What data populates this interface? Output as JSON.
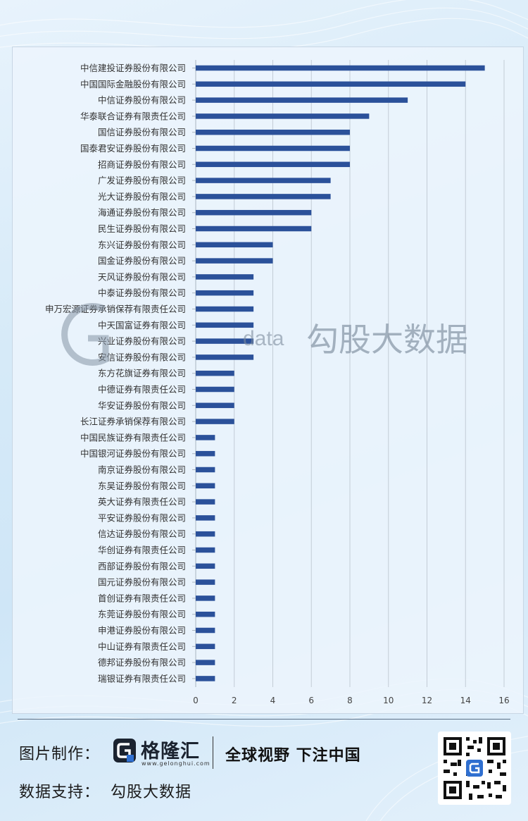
{
  "chart_data": {
    "type": "bar",
    "orientation": "horizontal",
    "categories": [
      "中信建投证券股份有限公司",
      "中国国际金融股份有限公司",
      "中信证券股份有限公司",
      "华泰联合证券有限责任公司",
      "国信证券股份有限公司",
      "国泰君安证券股份有限公司",
      "招商证券股份有限公司",
      "广发证券股份有限公司",
      "光大证券股份有限公司",
      "海通证券股份有限公司",
      "民生证券股份有限公司",
      "东兴证券股份有限公司",
      "国金证券股份有限公司",
      "天风证券股份有限公司",
      "中泰证券股份有限公司",
      "申万宏源证券承销保荐有限责任公司",
      "中天国富证券有限公司",
      "兴业证券股份有限公司",
      "安信证券股份有限公司",
      "东方花旗证券有限公司",
      "中德证券有限责任公司",
      "华安证券股份有限公司",
      "长江证券承销保荐有限公司",
      "中国民族证券有限责任公司",
      "中国银河证券股份有限公司",
      "南京证券股份有限公司",
      "东吴证券股份有限公司",
      "英大证券有限责任公司",
      "平安证券股份有限公司",
      "信达证券股份有限公司",
      "华创证券有限责任公司",
      "西部证券股份有限公司",
      "国元证券股份有限公司",
      "首创证券有限责任公司",
      "东莞证券股份有限公司",
      "申港证券股份有限公司",
      "中山证券有限责任公司",
      "德邦证券股份有限公司",
      "瑞银证券有限责任公司"
    ],
    "values": [
      15,
      14,
      11,
      9,
      8,
      8,
      8,
      7,
      7,
      6,
      6,
      4,
      4,
      3,
      3,
      3,
      3,
      3,
      3,
      2,
      2,
      2,
      2,
      1,
      1,
      1,
      1,
      1,
      1,
      1,
      1,
      1,
      1,
      1,
      1,
      1,
      1,
      1,
      1
    ],
    "xlim": [
      0,
      16
    ],
    "xticks": [
      "0",
      "2",
      "4",
      "6",
      "8",
      "10",
      "12",
      "14",
      "16"
    ],
    "grid": "vertical",
    "bar_color": "#2b519a",
    "title": "",
    "xlabel": "",
    "ylabel": ""
  },
  "watermark": {
    "latin": "data",
    "cn": "勾股大数据"
  },
  "footer": {
    "made_by_label": "图片制作：",
    "brand_name": "格隆汇",
    "brand_url": "www.gelonghui.com",
    "slogan": "全球视野 下注中国",
    "data_support_label": "数据支持：",
    "data_support_value": "勾股大数据"
  },
  "colors": {
    "accent": "#2b519a",
    "axis": "#a9b4bf",
    "grid": "#c3ccd6"
  }
}
